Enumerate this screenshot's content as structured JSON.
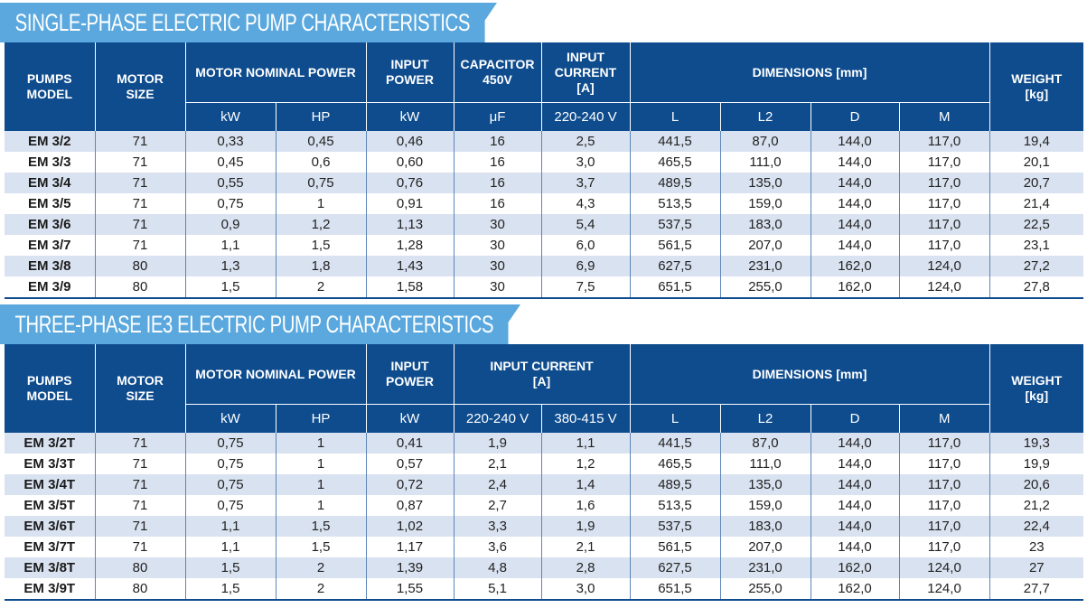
{
  "single_phase": {
    "title": "SINGLE-PHASE ELECTRIC PUMP CHARACTERISTICS",
    "headers": {
      "pumps_model": "PUMPS\nMODEL",
      "motor_size": "MOTOR\nSIZE",
      "motor_nominal_power": "MOTOR NOMINAL POWER",
      "input_power": "INPUT\nPOWER",
      "capacitor": "CAPACITOR\n450V",
      "input_current": "INPUT CURRENT\n[A]",
      "dimensions": "DIMENSIONS [mm]",
      "weight": "WEIGHT\n[kg]"
    },
    "units": [
      "kW",
      "HP",
      "kW",
      "μF",
      "220-240 V",
      "L",
      "L2",
      "D",
      "M"
    ],
    "rows": [
      [
        "EM 3/2",
        "71",
        "0,33",
        "0,45",
        "0,46",
        "16",
        "2,5",
        "441,5",
        "87,0",
        "144,0",
        "117,0",
        "19,4"
      ],
      [
        "EM 3/3",
        "71",
        "0,45",
        "0,6",
        "0,60",
        "16",
        "3,0",
        "465,5",
        "111,0",
        "144,0",
        "117,0",
        "20,1"
      ],
      [
        "EM 3/4",
        "71",
        "0,55",
        "0,75",
        "0,76",
        "16",
        "3,7",
        "489,5",
        "135,0",
        "144,0",
        "117,0",
        "20,7"
      ],
      [
        "EM 3/5",
        "71",
        "0,75",
        "1",
        "0,91",
        "16",
        "4,3",
        "513,5",
        "159,0",
        "144,0",
        "117,0",
        "21,4"
      ],
      [
        "EM 3/6",
        "71",
        "0,9",
        "1,2",
        "1,13",
        "30",
        "5,4",
        "537,5",
        "183,0",
        "144,0",
        "117,0",
        "22,5"
      ],
      [
        "EM 3/7",
        "71",
        "1,1",
        "1,5",
        "1,28",
        "30",
        "6,0",
        "561,5",
        "207,0",
        "144,0",
        "117,0",
        "23,1"
      ],
      [
        "EM 3/8",
        "80",
        "1,3",
        "1,8",
        "1,43",
        "30",
        "6,9",
        "627,5",
        "231,0",
        "162,0",
        "124,0",
        "27,2"
      ],
      [
        "EM 3/9",
        "80",
        "1,5",
        "2",
        "1,58",
        "30",
        "7,5",
        "651,5",
        "255,0",
        "162,0",
        "124,0",
        "27,8"
      ]
    ]
  },
  "three_phase": {
    "title": "THREE-PHASE IE3 ELECTRIC PUMP CHARACTERISTICS",
    "headers": {
      "pumps_model": "PUMPS\nMODEL",
      "motor_size": "MOTOR\nSIZE",
      "motor_nominal_power": "MOTOR NOMINAL POWER",
      "input_power": "INPUT\nPOWER",
      "input_current": "INPUT CURRENT\n[A]",
      "dimensions": "DIMENSIONS [mm]",
      "weight": "WEIGHT\n[kg]"
    },
    "units": [
      "kW",
      "HP",
      "kW",
      "220-240 V",
      "380-415 V",
      "L",
      "L2",
      "D",
      "M"
    ],
    "rows": [
      [
        "EM 3/2T",
        "71",
        "0,75",
        "1",
        "0,41",
        "1,9",
        "1,1",
        "441,5",
        "87,0",
        "144,0",
        "117,0",
        "19,3"
      ],
      [
        "EM 3/3T",
        "71",
        "0,75",
        "1",
        "0,57",
        "2,1",
        "1,2",
        "465,5",
        "111,0",
        "144,0",
        "117,0",
        "19,9"
      ],
      [
        "EM 3/4T",
        "71",
        "0,75",
        "1",
        "0,72",
        "2,4",
        "1,4",
        "489,5",
        "135,0",
        "144,0",
        "117,0",
        "20,6"
      ],
      [
        "EM 3/5T",
        "71",
        "0,75",
        "1",
        "0,87",
        "2,7",
        "1,6",
        "513,5",
        "159,0",
        "144,0",
        "117,0",
        "21,2"
      ],
      [
        "EM 3/6T",
        "71",
        "1,1",
        "1,5",
        "1,02",
        "3,3",
        "1,9",
        "537,5",
        "183,0",
        "144,0",
        "117,0",
        "22,4"
      ],
      [
        "EM 3/7T",
        "71",
        "1,1",
        "1,5",
        "1,17",
        "3,6",
        "2,1",
        "561,5",
        "207,0",
        "144,0",
        "117,0",
        "23"
      ],
      [
        "EM 3/8T",
        "80",
        "1,5",
        "2",
        "1,39",
        "4,8",
        "2,8",
        "627,5",
        "231,0",
        "162,0",
        "124,0",
        "27"
      ],
      [
        "EM 3/9T",
        "80",
        "1,5",
        "2",
        "1,55",
        "5,1",
        "3,0",
        "651,5",
        "255,0",
        "162,0",
        "124,0",
        "27,7"
      ]
    ]
  },
  "colors": {
    "banner": "#5aa8de",
    "header": "#0e4c8e",
    "row_alt": "#d9e2f0"
  }
}
